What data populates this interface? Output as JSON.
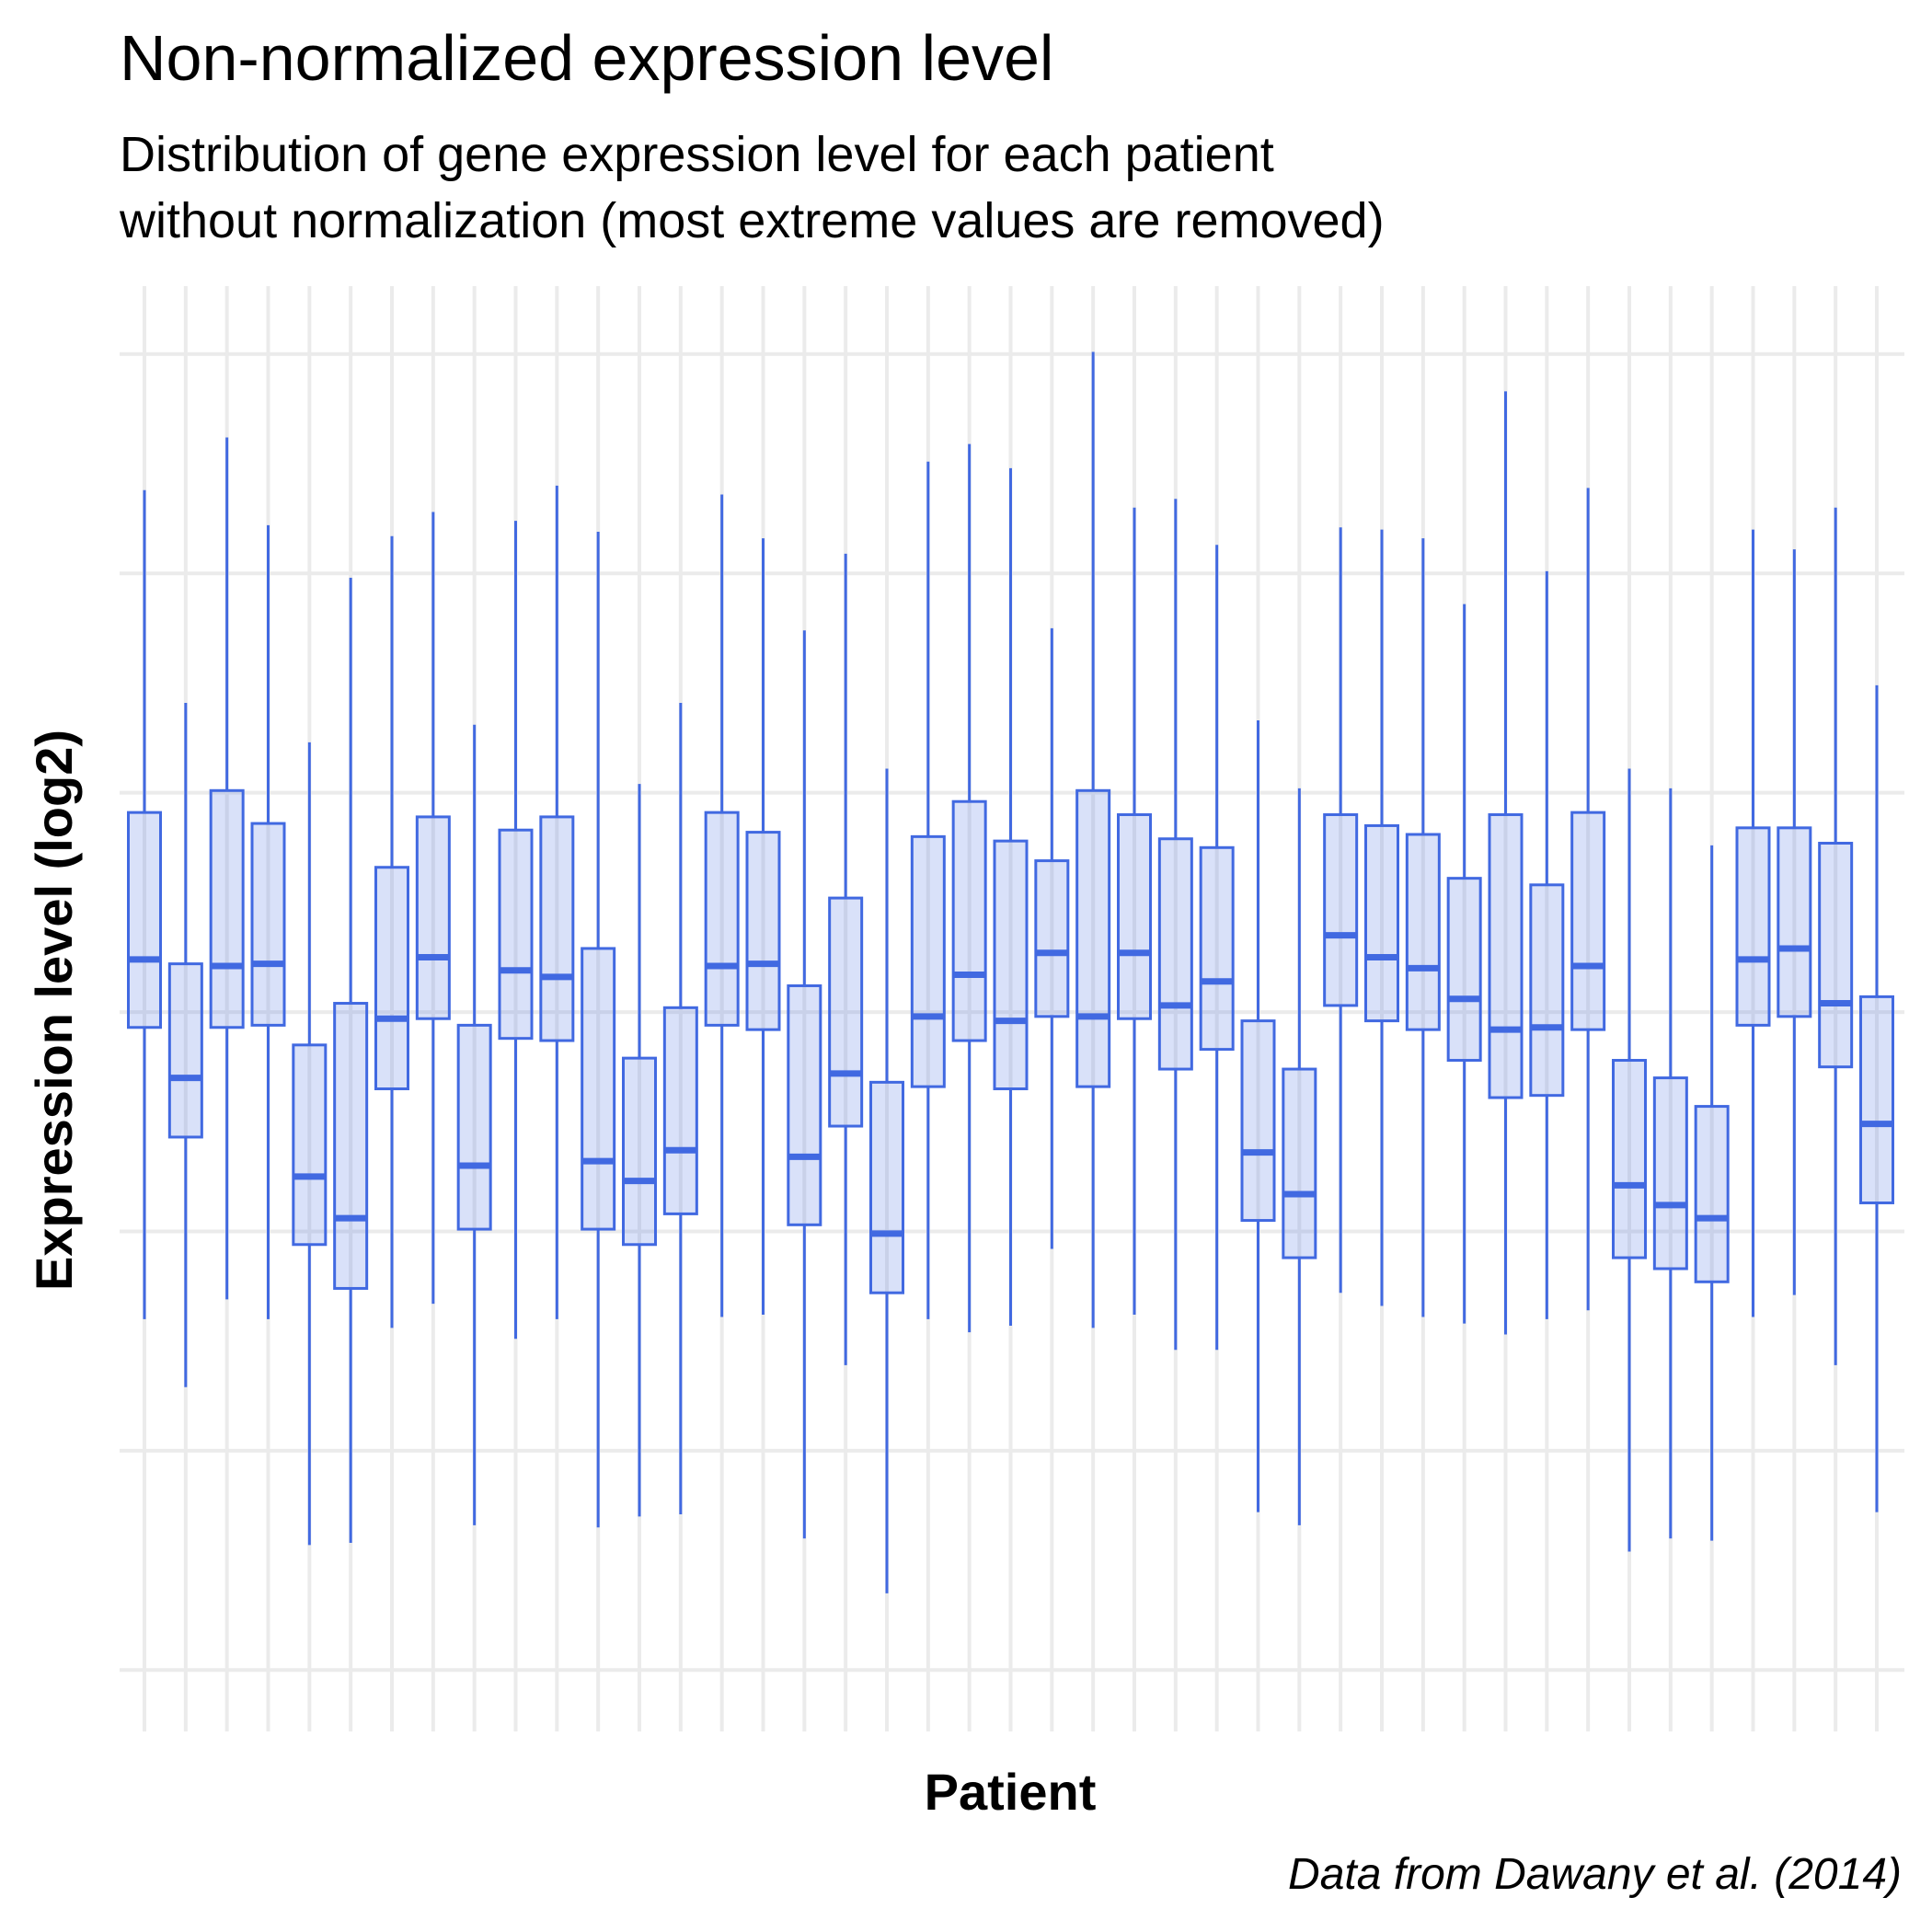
{
  "chart_data": {
    "type": "boxplot",
    "title": "Non-normalized expression level",
    "subtitle": [
      "Distribution of gene expression level for each patient",
      "without normalization (most extreme values are removed)"
    ],
    "x_label": "Patient",
    "y_label": "Expression level (log2)",
    "caption": "Data from Dawany et al. (2014)",
    "color": "#4169e1",
    "grid": true,
    "ylim": [
      -0.28,
      6.31
    ],
    "yticks": [
      0,
      1,
      2,
      3,
      4,
      5,
      6
    ],
    "max": [
      5.38,
      4.41,
      5.62,
      5.22,
      4.23,
      4.98,
      5.17,
      5.28,
      4.31,
      5.24,
      5.4,
      5.19,
      4.04,
      4.41,
      5.36,
      5.16,
      4.74,
      5.09,
      4.11,
      5.51,
      5.59,
      5.48,
      4.75,
      6.01,
      5.3,
      5.34,
      5.13,
      4.33,
      4.02,
      5.21,
      5.2,
      5.16,
      4.86,
      5.83,
      5.01,
      5.39,
      4.11,
      4.02,
      3.76,
      5.2,
      5.11,
      5.3,
      4.49
    ],
    "q3": [
      3.91,
      3.22,
      4.01,
      3.86,
      2.85,
      3.04,
      3.66,
      3.89,
      2.94,
      3.83,
      3.89,
      3.29,
      2.79,
      3.02,
      3.91,
      3.82,
      3.12,
      3.52,
      2.68,
      3.8,
      3.96,
      3.78,
      3.69,
      4.01,
      3.9,
      3.79,
      3.75,
      2.96,
      2.74,
      3.9,
      3.85,
      3.81,
      3.61,
      3.9,
      3.58,
      3.91,
      2.78,
      2.7,
      2.57,
      3.84,
      3.84,
      3.77,
      3.07
    ],
    "median": [
      3.24,
      2.7,
      3.21,
      3.22,
      2.25,
      2.06,
      2.97,
      3.25,
      2.3,
      3.19,
      3.16,
      2.32,
      2.23,
      2.37,
      3.21,
      3.22,
      2.34,
      2.72,
      1.99,
      2.98,
      3.17,
      2.96,
      3.27,
      2.98,
      3.27,
      3.03,
      3.14,
      2.36,
      2.17,
      3.35,
      3.25,
      3.2,
      3.06,
      2.92,
      2.93,
      3.21,
      2.21,
      2.12,
      2.06,
      3.24,
      3.29,
      3.04,
      2.49
    ],
    "q1": [
      2.93,
      2.43,
      2.93,
      2.94,
      1.94,
      1.74,
      2.65,
      2.97,
      2.01,
      2.88,
      2.87,
      2.01,
      1.94,
      2.08,
      2.94,
      2.92,
      2.03,
      2.48,
      1.72,
      2.66,
      2.87,
      2.65,
      2.98,
      2.66,
      2.97,
      2.74,
      2.83,
      2.05,
      1.88,
      3.03,
      2.96,
      2.92,
      2.78,
      2.61,
      2.62,
      2.92,
      1.88,
      1.83,
      1.77,
      2.94,
      2.98,
      2.75,
      2.13
    ],
    "min": [
      1.6,
      1.29,
      1.69,
      1.6,
      0.57,
      0.58,
      1.56,
      1.67,
      0.66,
      1.51,
      1.6,
      0.65,
      0.7,
      0.71,
      1.61,
      1.62,
      0.6,
      1.39,
      0.35,
      1.6,
      1.54,
      1.57,
      1.92,
      1.56,
      1.62,
      1.46,
      1.46,
      0.72,
      0.66,
      1.72,
      1.66,
      1.61,
      1.58,
      1.53,
      1.6,
      1.64,
      0.54,
      0.6,
      0.59,
      1.61,
      1.71,
      1.39,
      0.72
    ]
  }
}
